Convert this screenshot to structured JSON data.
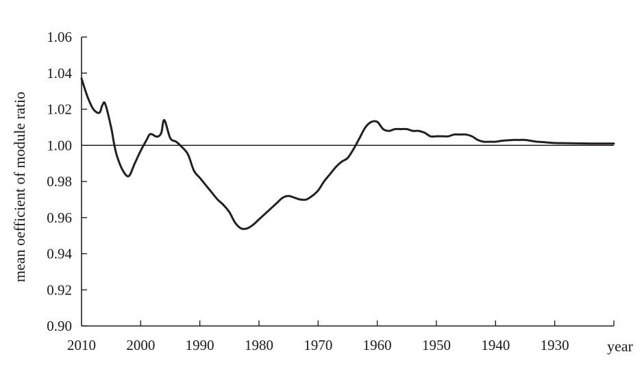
{
  "chart_data": {
    "type": "line",
    "title": "",
    "xlabel": "year",
    "ylabel": "mean oefficient of module ratio",
    "x_reversed": true,
    "xlim": [
      2010,
      1920
    ],
    "ylim": [
      0.9,
      1.06
    ],
    "x_ticks": [
      2010,
      2000,
      1990,
      1980,
      1970,
      1960,
      1950,
      1940,
      1930
    ],
    "x_tick_labels": [
      "2010",
      "2000",
      "1990",
      "1980",
      "1970",
      "1960",
      "1950",
      "1940",
      "1930"
    ],
    "y_ticks": [
      0.9,
      0.92,
      0.94,
      0.96,
      0.98,
      1.0,
      1.02,
      1.04,
      1.06
    ],
    "y_tick_labels": [
      "0.90",
      "0.92",
      "0.94",
      "0.96",
      "0.98",
      "1.00",
      "1.02",
      "1.04",
      "1.06"
    ],
    "reference_line": 1.0,
    "grid": false,
    "series": [
      {
        "x": [
          2010,
          2009,
          2008,
          2007,
          2006.5,
          2006,
          2005,
          2004.5,
          2004,
          2003,
          2002,
          2001,
          2000,
          1999,
          1998.5,
          1998,
          1997.5,
          1997,
          1996.5,
          1996,
          1995,
          1994,
          1993,
          1992,
          1991,
          1990,
          1989,
          1988,
          1987,
          1986,
          1985,
          1984,
          1983,
          1982,
          1981,
          1980,
          1979,
          1978,
          1977,
          1976,
          1975,
          1974,
          1973,
          1972,
          1971,
          1970,
          1969,
          1968,
          1967,
          1966,
          1965,
          1964,
          1963,
          1962,
          1961,
          1960,
          1959,
          1958,
          1957,
          1956,
          1955,
          1954,
          1953,
          1952,
          1951,
          1950,
          1949,
          1948,
          1947,
          1946,
          1945,
          1944,
          1943,
          1942,
          1941,
          1940,
          1939,
          1938,
          1937,
          1936,
          1935,
          1934,
          1933,
          1932,
          1931,
          1930,
          1928,
          1926,
          1924,
          1922,
          1920
        ],
        "values": [
          1.037,
          1.027,
          1.02,
          1.018,
          1.022,
          1.023,
          1.01,
          1.001,
          0.994,
          0.986,
          0.983,
          0.99,
          0.997,
          1.003,
          1.006,
          1.006,
          1.005,
          1.005,
          1.007,
          1.014,
          1.004,
          1.002,
          0.999,
          0.995,
          0.986,
          0.982,
          0.978,
          0.974,
          0.97,
          0.967,
          0.963,
          0.957,
          0.954,
          0.954,
          0.956,
          0.959,
          0.962,
          0.965,
          0.968,
          0.971,
          0.972,
          0.971,
          0.97,
          0.97,
          0.972,
          0.975,
          0.98,
          0.984,
          0.988,
          0.991,
          0.993,
          0.998,
          1.004,
          1.01,
          1.013,
          1.013,
          1.009,
          1.008,
          1.009,
          1.009,
          1.009,
          1.008,
          1.008,
          1.007,
          1.005,
          1.005,
          1.005,
          1.005,
          1.006,
          1.006,
          1.006,
          1.005,
          1.003,
          1.002,
          1.002,
          1.002,
          1.0025,
          1.0028,
          1.003,
          1.003,
          1.003,
          1.0025,
          1.002,
          1.0018,
          1.0015,
          1.0013,
          1.0012,
          1.0011,
          1.001,
          1.001,
          1.001
        ]
      }
    ]
  }
}
